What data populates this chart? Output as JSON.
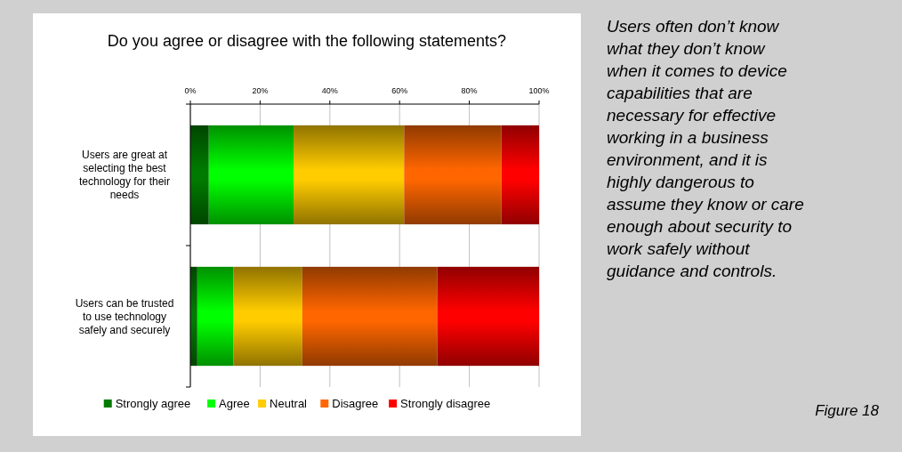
{
  "chart_data": {
    "type": "bar",
    "orientation": "horizontal",
    "stacked": true,
    "title": "Do you agree or disagree with the following statements?",
    "categories": [
      "Users are great at selecting the best technology for their needs",
      "Users can be trusted to use technology safely and securely"
    ],
    "series": [
      {
        "name": "Strongly agree",
        "color": "#007a00",
        "values": [
          5.3,
          2.0
        ]
      },
      {
        "name": "Agree",
        "color": "#00ff00",
        "values": [
          24.3,
          10.4
        ]
      },
      {
        "name": "Neutral",
        "color": "#ffcc00",
        "values": [
          31.7,
          19.7
        ]
      },
      {
        "name": "Disagree",
        "color": "#ff6600",
        "values": [
          27.9,
          38.7
        ]
      },
      {
        "name": "Strongly disagree",
        "color": "#ff0000",
        "values": [
          10.8,
          29.2
        ]
      }
    ],
    "xlim": [
      0,
      100
    ],
    "xticks": [
      {
        "value": 0,
        "label": "0%"
      },
      {
        "value": 20,
        "label": "20%"
      },
      {
        "value": 40,
        "label": "40%"
      },
      {
        "value": 60,
        "label": "60%"
      },
      {
        "value": 80,
        "label": "80%"
      },
      {
        "value": 100,
        "label": "100%"
      }
    ],
    "grid": "x",
    "legend": "bottom",
    "annotations": [
      "Users often don’t know what they don’t know when it comes to device capabilities that are necessary for effective working in a business environment, and it is highly dangerous to assume they know or care enough about security to work safely without guidance and controls.",
      "Figure 18"
    ]
  }
}
